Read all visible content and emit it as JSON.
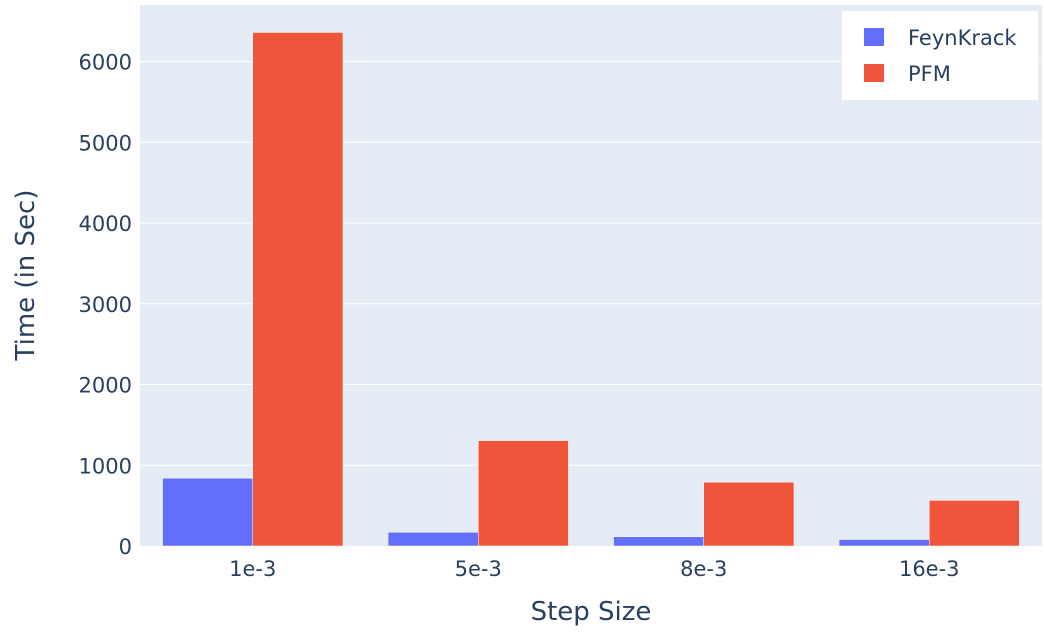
{
  "chart_data": {
    "type": "bar",
    "title": "",
    "xlabel": "Step Size",
    "ylabel": "Time (in Sec)",
    "categories": [
      "1e-3",
      "5e-3",
      "8e-3",
      "16e-3"
    ],
    "series": [
      {
        "name": "FeynKrack",
        "color": "#636efa",
        "values": [
          840,
          170,
          115,
          80
        ]
      },
      {
        "name": "PFM",
        "color": "#ef553b",
        "values": [
          6360,
          1305,
          790,
          565
        ]
      }
    ],
    "ylim": [
      0,
      6700
    ],
    "yticks": [
      0,
      1000,
      2000,
      3000,
      4000,
      5000,
      6000
    ],
    "grid": true,
    "legend_position": "top-right",
    "plot_background": "#e5ecf6"
  }
}
